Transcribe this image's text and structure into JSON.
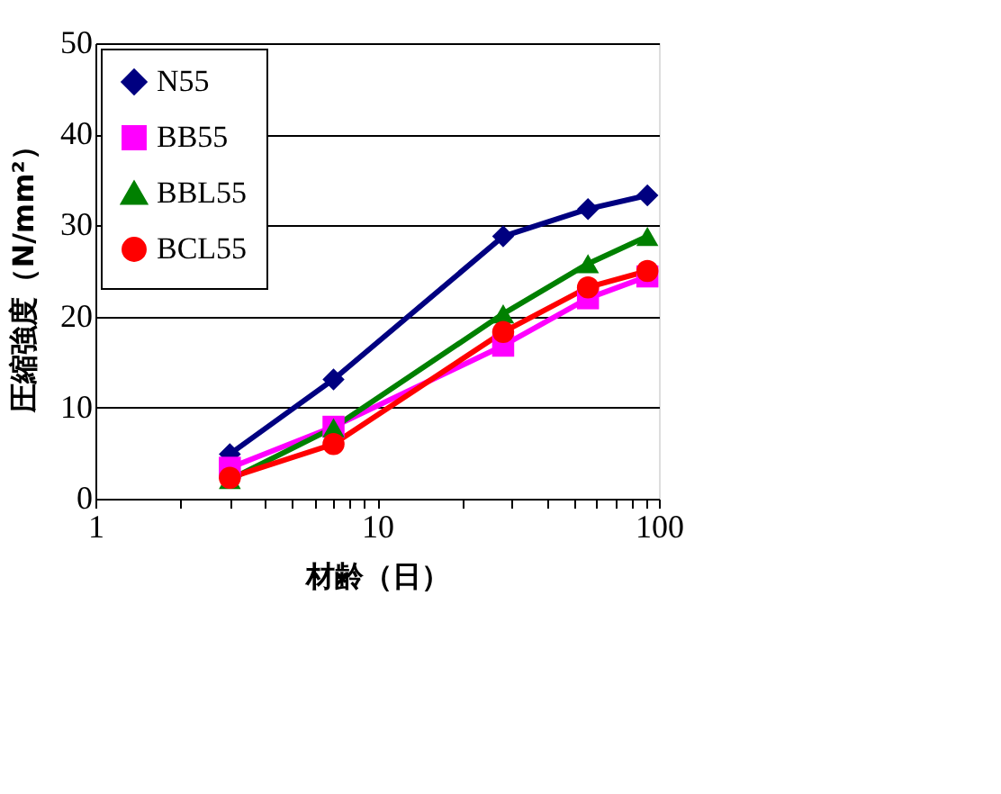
{
  "chart_data": {
    "type": "line",
    "xlabel": "材齢（日）",
    "ylabel": "圧縮強度（N/mm²）",
    "x": [
      3,
      7,
      28,
      56,
      91
    ],
    "series": [
      {
        "name": "N55",
        "color": "#000080",
        "marker": "diamond",
        "values": [
          4.9,
          13.1,
          28.8,
          31.8,
          33.3
        ]
      },
      {
        "name": "BB55",
        "color": "#ff00ff",
        "marker": "square",
        "values": [
          3.4,
          7.9,
          16.8,
          22.0,
          24.4
        ]
      },
      {
        "name": "BBL55",
        "color": "#008000",
        "marker": "triangle",
        "values": [
          2.1,
          7.8,
          20.3,
          25.8,
          28.8
        ]
      },
      {
        "name": "BCL55",
        "color": "#ff0000",
        "marker": "circle",
        "values": [
          2.3,
          6.0,
          18.3,
          23.2,
          25.0
        ]
      }
    ],
    "log": "x",
    "xlim": [
      1,
      100
    ],
    "xticks": [
      1,
      {
        "value": 2,
        "label": null
      },
      {
        "value": 3,
        "label": null
      },
      {
        "value": 4,
        "label": null
      },
      {
        "value": 5,
        "label": null
      },
      {
        "value": 6,
        "label": null
      },
      {
        "value": 7,
        "label": null
      },
      {
        "value": 8,
        "label": null
      },
      {
        "value": 9,
        "label": null
      },
      10,
      {
        "value": 20,
        "label": null
      },
      {
        "value": 30,
        "label": null
      },
      {
        "value": 40,
        "label": null
      },
      {
        "value": 50,
        "label": null
      },
      {
        "value": 60,
        "label": null
      },
      {
        "value": 70,
        "label": null
      },
      {
        "value": 80,
        "label": null
      },
      {
        "value": 90,
        "label": null
      },
      100
    ],
    "ylim": [
      0,
      50
    ],
    "yticks": [
      0,
      10,
      20,
      30,
      40,
      50
    ],
    "grid": "y",
    "legend": "top left",
    "line_style": "solid"
  }
}
